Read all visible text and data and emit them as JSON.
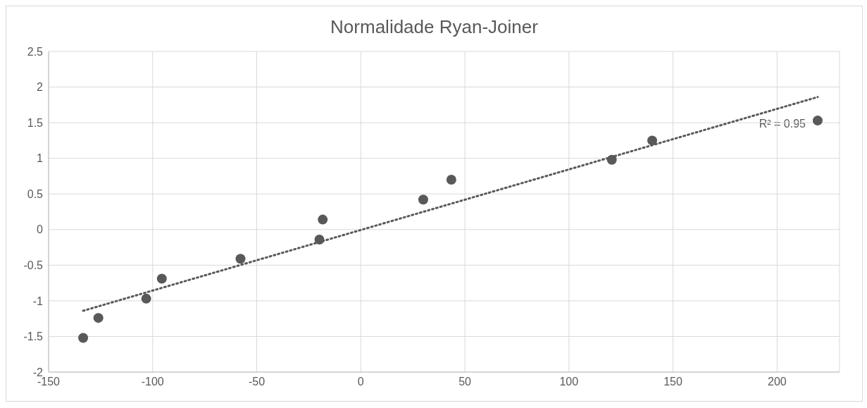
{
  "chart_data": {
    "type": "scatter",
    "title": "Normalidade Ryan-Joiner",
    "x": [
      -133.4,
      -126.1,
      -103.1,
      -95.6,
      -57.8,
      -19.9,
      -18.3,
      30.0,
      43.5,
      120.6,
      140.0,
      219.5
    ],
    "series": [
      {
        "color": "#595959",
        "values": [
          -1.52,
          -1.24,
          -0.97,
          -0.69,
          -0.41,
          -0.14,
          0.14,
          0.42,
          0.7,
          0.98,
          1.25,
          1.53
        ]
      },
      {
        "type": "line",
        "color": "#595959",
        "line_style": "dotted",
        "marker": "none",
        "x": [
          -133.4,
          219.5
        ],
        "values": [
          -1.14,
          1.86
        ]
      }
    ],
    "marker": "circle",
    "xlim": [
      -150,
      230
    ],
    "xticks": [
      -150,
      -100,
      -50,
      0,
      50,
      100,
      150,
      200
    ],
    "ylim": [
      -2,
      2.5
    ],
    "yticks": [
      -2,
      -1.5,
      -1,
      -0.5,
      0,
      0.5,
      1,
      1.5,
      2,
      2.5
    ],
    "grid": true,
    "annotations": [
      "R² = 0.95"
    ]
  }
}
